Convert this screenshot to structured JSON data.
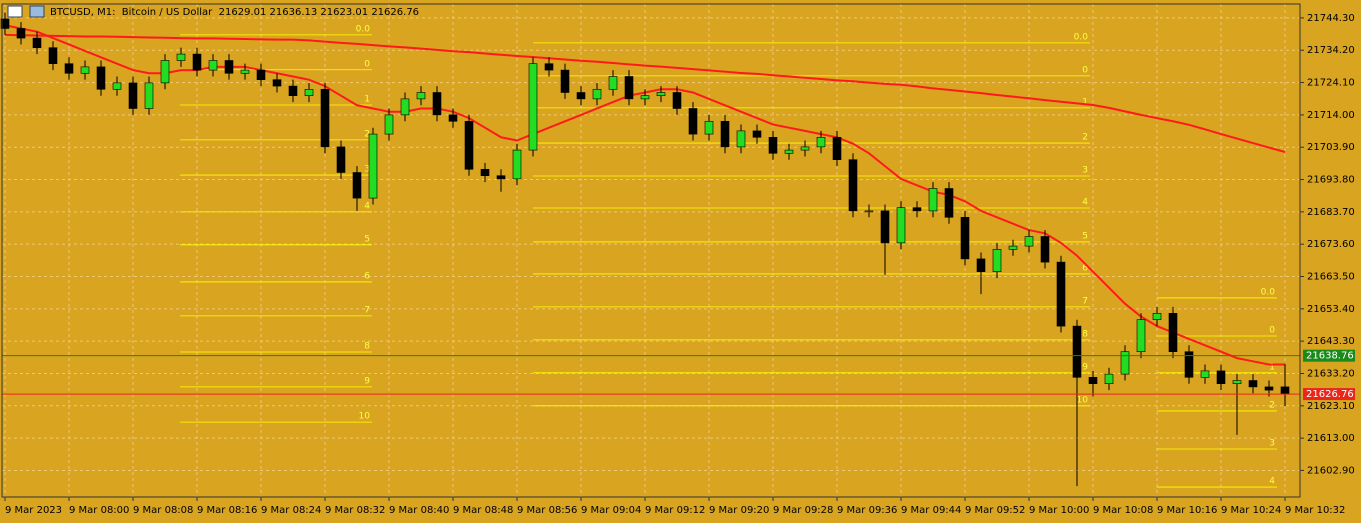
{
  "chart_data": {
    "type": "candlestick",
    "title": "BTCUSD, M1:  Bitcoin / US Dollar  21629.01 21636.13 21623.01 21626.76",
    "categories": [
      "9 Mar 2023",
      null,
      null,
      null,
      "9 Mar 08:00",
      null,
      null,
      null,
      "9 Mar 08:08",
      null,
      null,
      null,
      "9 Mar 08:16",
      null,
      null,
      null,
      "9 Mar 08:24",
      null,
      null,
      null,
      "9 Mar 08:32",
      null,
      null,
      null,
      "9 Mar 08:40",
      null,
      null,
      null,
      "9 Mar 08:48",
      null,
      null,
      null,
      "9 Mar 08:56",
      null,
      null,
      null,
      "9 Mar 09:04",
      null,
      null,
      null,
      "9 Mar 09:12",
      null,
      null,
      null,
      "9 Mar 09:20",
      null,
      null,
      null,
      "9 Mar 09:28",
      null,
      null,
      null,
      "9 Mar 09:36",
      null,
      null,
      null,
      "9 Mar 09:44",
      null,
      null,
      null,
      "9 Mar 09:52",
      null,
      null,
      null,
      "9 Mar 10:00",
      null,
      null,
      null,
      "9 Mar 10:08",
      null,
      null,
      null,
      "9 Mar 10:16",
      null,
      null,
      null,
      "9 Mar 10:24",
      null,
      null,
      null,
      "9 Mar 10:32"
    ],
    "open": [
      21744,
      21741,
      21738,
      21735,
      21730,
      21727,
      21729,
      21722,
      21724,
      21716,
      21724,
      21731,
      21733,
      21728,
      21731,
      21727,
      21728,
      21725,
      21723,
      21720,
      21722,
      21704,
      21696,
      21688,
      21708,
      21714,
      21719,
      21721,
      21714,
      21712,
      21697,
      21695,
      21694,
      21703,
      21730,
      21728,
      21721,
      21719,
      21722,
      21726,
      21719,
      21720,
      21721,
      21716,
      21708,
      21712,
      21704,
      21709,
      21707,
      21702,
      21703,
      21704,
      21707,
      21700,
      21684,
      21684,
      21674,
      21685,
      21684,
      21691,
      21682,
      21669,
      21665,
      21672,
      21673,
      21676,
      21668,
      21648,
      21632,
      21630,
      21633,
      21640,
      21650,
      21652,
      21640,
      21632,
      21634,
      21630,
      21631,
      21629,
      21629.01
    ],
    "high": [
      21746,
      21743,
      21740,
      21737,
      21732,
      21731,
      21731,
      21726,
      21726,
      21726,
      21733,
      21735,
      21735,
      21733,
      21733,
      21730,
      21730,
      21727,
      21725,
      21724,
      21724,
      21706,
      21698,
      21710,
      21716,
      21721,
      21723,
      21723,
      21716,
      21714,
      21699,
      21697,
      21705,
      21732,
      21732,
      21730,
      21723,
      21724,
      21728,
      21728,
      21722,
      21723,
      21723,
      21718,
      21714,
      21714,
      21711,
      21711,
      21709,
      21705,
      21706,
      21709,
      21709,
      21702,
      21686,
      21686,
      21687,
      21687,
      21693,
      21693,
      21684,
      21671,
      21674,
      21675,
      21678,
      21678,
      21670,
      21650,
      21634,
      21635,
      21642,
      21652,
      21654,
      21654,
      21642,
      21636,
      21636,
      21633,
      21633,
      21631,
      21636.13
    ],
    "low": [
      21739,
      21736,
      21733,
      21728,
      21725,
      21725,
      21720,
      21720,
      21714,
      21714,
      21722,
      21729,
      21726,
      21726,
      21725,
      21725,
      21723,
      21721,
      21718,
      21718,
      21702,
      21694,
      21684,
      21686,
      21706,
      21712,
      21717,
      21712,
      21710,
      21695,
      21693,
      21690,
      21692,
      21701,
      21726,
      21719,
      21717,
      21717,
      21720,
      21717,
      21717,
      21718,
      21714,
      21706,
      21706,
      21702,
      21702,
      21705,
      21700,
      21700,
      21701,
      21702,
      21698,
      21682,
      21682,
      21664,
      21672,
      21682,
      21682,
      21680,
      21667,
      21658,
      21663,
      21670,
      21671,
      21666,
      21646,
      21598,
      21626,
      21628,
      21631,
      21638,
      21648,
      21638,
      21630,
      21630,
      21628,
      21614,
      21627,
      21626,
      21623.01
    ],
    "close": [
      21741,
      21738,
      21735,
      21730,
      21727,
      21729,
      21722,
      21724,
      21716,
      21724,
      21731,
      21733,
      21728,
      21731,
      21727,
      21728,
      21725,
      21723,
      21720,
      21722,
      21704,
      21696,
      21688,
      21708,
      21714,
      21719,
      21721,
      21714,
      21712,
      21697,
      21695,
      21694,
      21703,
      21730,
      21728,
      21721,
      21719,
      21722,
      21726,
      21719,
      21720,
      21721,
      21716,
      21708,
      21712,
      21704,
      21709,
      21707,
      21702,
      21703,
      21704,
      21707,
      21700,
      21684,
      21684,
      21674,
      21685,
      21684,
      21691,
      21682,
      21669,
      21665,
      21672,
      21673,
      21676,
      21668,
      21648,
      21632,
      21630,
      21633,
      21640,
      21650,
      21652,
      21640,
      21632,
      21634,
      21630,
      21631,
      21629,
      21628,
      21626.76
    ],
    "up_color": "#22dd22",
    "down_color": "#000000",
    "lines": [
      {
        "color": "#ff1a1a",
        "values": [
          21739.0,
          21738.9,
          21738.8,
          21738.7,
          21738.6,
          21738.5,
          21738.5,
          21738.4,
          21738.3,
          21738.2,
          21738.1,
          21738.0,
          21737.9,
          21737.9,
          21737.8,
          21737.7,
          21737.6,
          21737.5,
          21737.5,
          21737.3,
          21736.9,
          21736.5,
          21736.2,
          21735.8,
          21735.4,
          21735.1,
          21734.7,
          21734.3,
          21733.9,
          21733.6,
          21733.2,
          21732.8,
          21732.4,
          21732.1,
          21731.7,
          21731.3,
          21730.9,
          21730.6,
          21730.2,
          21729.8,
          21729.4,
          21729.1,
          21728.7,
          21728.3,
          21727.9,
          21727.5,
          21727.1,
          21726.8,
          21726.4,
          21726.0,
          21725.6,
          21725.2,
          21724.8,
          21724.5,
          21724.1,
          21723.7,
          21723.4,
          21722.9,
          21722.3,
          21721.8,
          21721.3,
          21720.8,
          21720.2,
          21719.7,
          21719.2,
          21718.6,
          21718.1,
          21717.6,
          21717.1,
          21716.2,
          21715.1,
          21714.0,
          21713.0,
          21712.0,
          21710.9,
          21709.5,
          21708.0,
          21706.6,
          21705.2,
          21703.8,
          21702.4
        ]
      },
      {
        "color": "#ff1a1a",
        "values": [
          21742,
          21741,
          21740,
          21738,
          21736,
          21734,
          21732,
          21730,
          21728,
          21727,
          21727,
          21728,
          21728,
          21729,
          21729,
          21729,
          21728,
          21727,
          21726,
          21725,
          21723,
          21720,
          21717,
          21716,
          21715,
          21715,
          21716,
          21716,
          21715,
          21713,
          21710,
          21707,
          21706,
          21708,
          21710,
          21712,
          21714,
          21716,
          21718,
          21720,
          21721,
          21722,
          21722,
          21721,
          21719,
          21717,
          21715,
          21713,
          21711,
          21710,
          21709,
          21708,
          21707,
          21705,
          21702,
          21698,
          21694,
          21692,
          21690,
          21689,
          21687,
          21684,
          21682,
          21680,
          21678,
          21677,
          21674,
          21670,
          21665,
          21660,
          21655,
          21651,
          21648,
          21646,
          21644,
          21642,
          21640,
          21638,
          21637,
          21636,
          21636
        ]
      }
    ],
    "fibonacci": [
      {
        "color": "#ffff00",
        "levels": [
          {
            "label": "0.0",
            "value": 21739.0
          },
          {
            "label": "0",
            "value": 21728.1
          },
          {
            "label": "1",
            "value": 21717.1
          },
          {
            "label": "2",
            "value": 21706.2
          },
          {
            "label": "3",
            "value": 21695.2
          },
          {
            "label": "4",
            "value": 21683.7
          },
          {
            "label": "5",
            "value": 21673.4
          },
          {
            "label": "6",
            "value": 21661.8
          },
          {
            "label": "7",
            "value": 21651.2
          },
          {
            "label": "8",
            "value": 21639.9
          },
          {
            "label": "9",
            "value": 21629.0
          },
          {
            "label": "10",
            "value": 21618.0
          }
        ]
      },
      {
        "color": "#ffff00",
        "levels": [
          {
            "label": "0.0",
            "value": 21736.5
          },
          {
            "label": "0",
            "value": 21726.2
          },
          {
            "label": "1",
            "value": 21716.2
          },
          {
            "label": "2",
            "value": 21705.2
          },
          {
            "label": "3",
            "value": 21694.9
          },
          {
            "label": "4",
            "value": 21684.9
          },
          {
            "label": "5",
            "value": 21674.3
          },
          {
            "label": "6",
            "value": 21664.3
          },
          {
            "label": "7",
            "value": 21654.0
          },
          {
            "label": "8",
            "value": 21643.7
          },
          {
            "label": "9",
            "value": 21633.4
          },
          {
            "label": "10",
            "value": 21623.1
          }
        ]
      },
      {
        "color": "#ffff00",
        "levels": [
          {
            "label": "0.0",
            "value": 21656.8
          },
          {
            "label": "0",
            "value": 21644.9
          },
          {
            "label": "1",
            "value": 21633.4
          },
          {
            "label": "2",
            "value": 21621.5
          },
          {
            "label": "3",
            "value": 21609.6
          },
          {
            "label": "4",
            "value": 21597.7
          }
        ]
      }
    ],
    "ask_line": {
      "value": 21638.76,
      "color": "#1a8a1a"
    },
    "bid_line": {
      "value": 21626.76,
      "color": "#e8261a"
    },
    "ylim": [
      21594.6,
      21749.9
    ],
    "yticks": [
      {
        "value": 21744.3,
        "label": "21744.30"
      },
      {
        "value": 21734.2,
        "label": "21734.20"
      },
      {
        "value": 21724.1,
        "label": "21724.10"
      },
      {
        "value": 21714.0,
        "label": "21714.00"
      },
      {
        "value": 21703.9,
        "label": "21703.90"
      },
      {
        "value": 21693.8,
        "label": "21693.80"
      },
      {
        "value": 21683.7,
        "label": "21683.70"
      },
      {
        "value": 21673.6,
        "label": "21673.60"
      },
      {
        "value": 21663.5,
        "label": "21663.50"
      },
      {
        "value": 21653.4,
        "label": "21653.40"
      },
      {
        "value": 21643.3,
        "label": "21643.30"
      },
      {
        "value": 21633.2,
        "label": "21633.20"
      },
      {
        "value": 21623.1,
        "label": "21623.10"
      },
      {
        "value": 21613.0,
        "label": "21613.00"
      },
      {
        "value": 21602.9,
        "label": "21602.90"
      }
    ],
    "grid": true
  }
}
